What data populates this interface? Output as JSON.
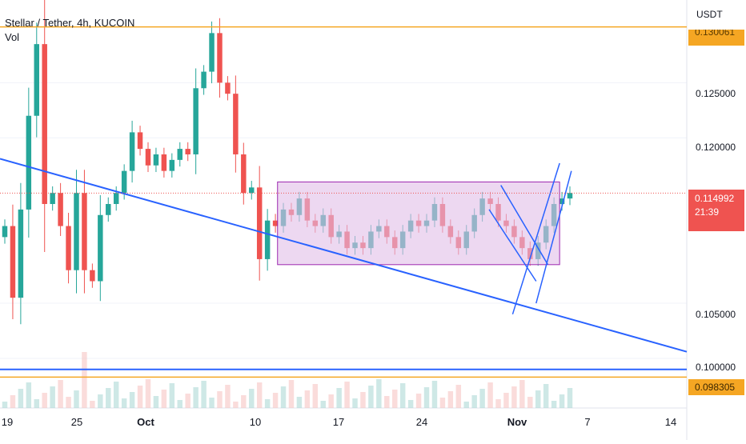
{
  "chart_data": {
    "type": "candlestick",
    "title": "Stellar / Tether, 4h, KUCOIN",
    "volume_label": "Vol",
    "currency": "USDT",
    "y_ticks": [
      "0.125000",
      "0.120000",
      "0.105000",
      "0.100000"
    ],
    "y_range": [
      0.0955,
      0.1325
    ],
    "x_ticks": [
      "19",
      "25",
      "Oct",
      "10",
      "17",
      "24",
      "Nov",
      "7",
      "14"
    ],
    "bold_x_ticks": [
      "Oct",
      "Nov"
    ],
    "x_start_date": "2022-09-19",
    "x_end_date": "2022-11-15",
    "current_price": "0.114992",
    "countdown": "21:39",
    "resistance_price": "0.130061",
    "support_price": "0.098305",
    "close_series": [
      0.112,
      0.1055,
      0.1135,
      0.122,
      0.1285,
      0.114,
      0.115,
      0.112,
      0.108,
      0.115,
      0.108,
      0.107,
      0.113,
      0.114,
      0.115,
      0.117,
      0.1205,
      0.119,
      0.1175,
      0.1185,
      0.117,
      0.118,
      0.119,
      0.1185,
      0.1245,
      0.126,
      0.1295,
      0.125,
      0.124,
      0.1185,
      0.115,
      0.1155,
      0.109,
      0.1125,
      0.112,
      0.1135,
      0.113,
      0.1145,
      0.1125,
      0.112,
      0.113,
      0.111,
      0.1115,
      0.11,
      0.1105,
      0.11,
      0.1115,
      0.112,
      0.111,
      0.11,
      0.1115,
      0.1125,
      0.112,
      0.1125,
      0.114,
      0.112,
      0.111,
      0.11,
      0.1115,
      0.113,
      0.1145,
      0.114,
      0.1125,
      0.112,
      0.111,
      0.11,
      0.109,
      0.1105,
      0.112,
      0.114,
      0.1145,
      0.115
    ],
    "colors": {
      "up": "#26a69a",
      "down": "#ef5350",
      "trendline": "#2962ff",
      "level": "#f5a623",
      "range_fill": "#e1bee7",
      "range_border": "#9c27b0"
    }
  }
}
